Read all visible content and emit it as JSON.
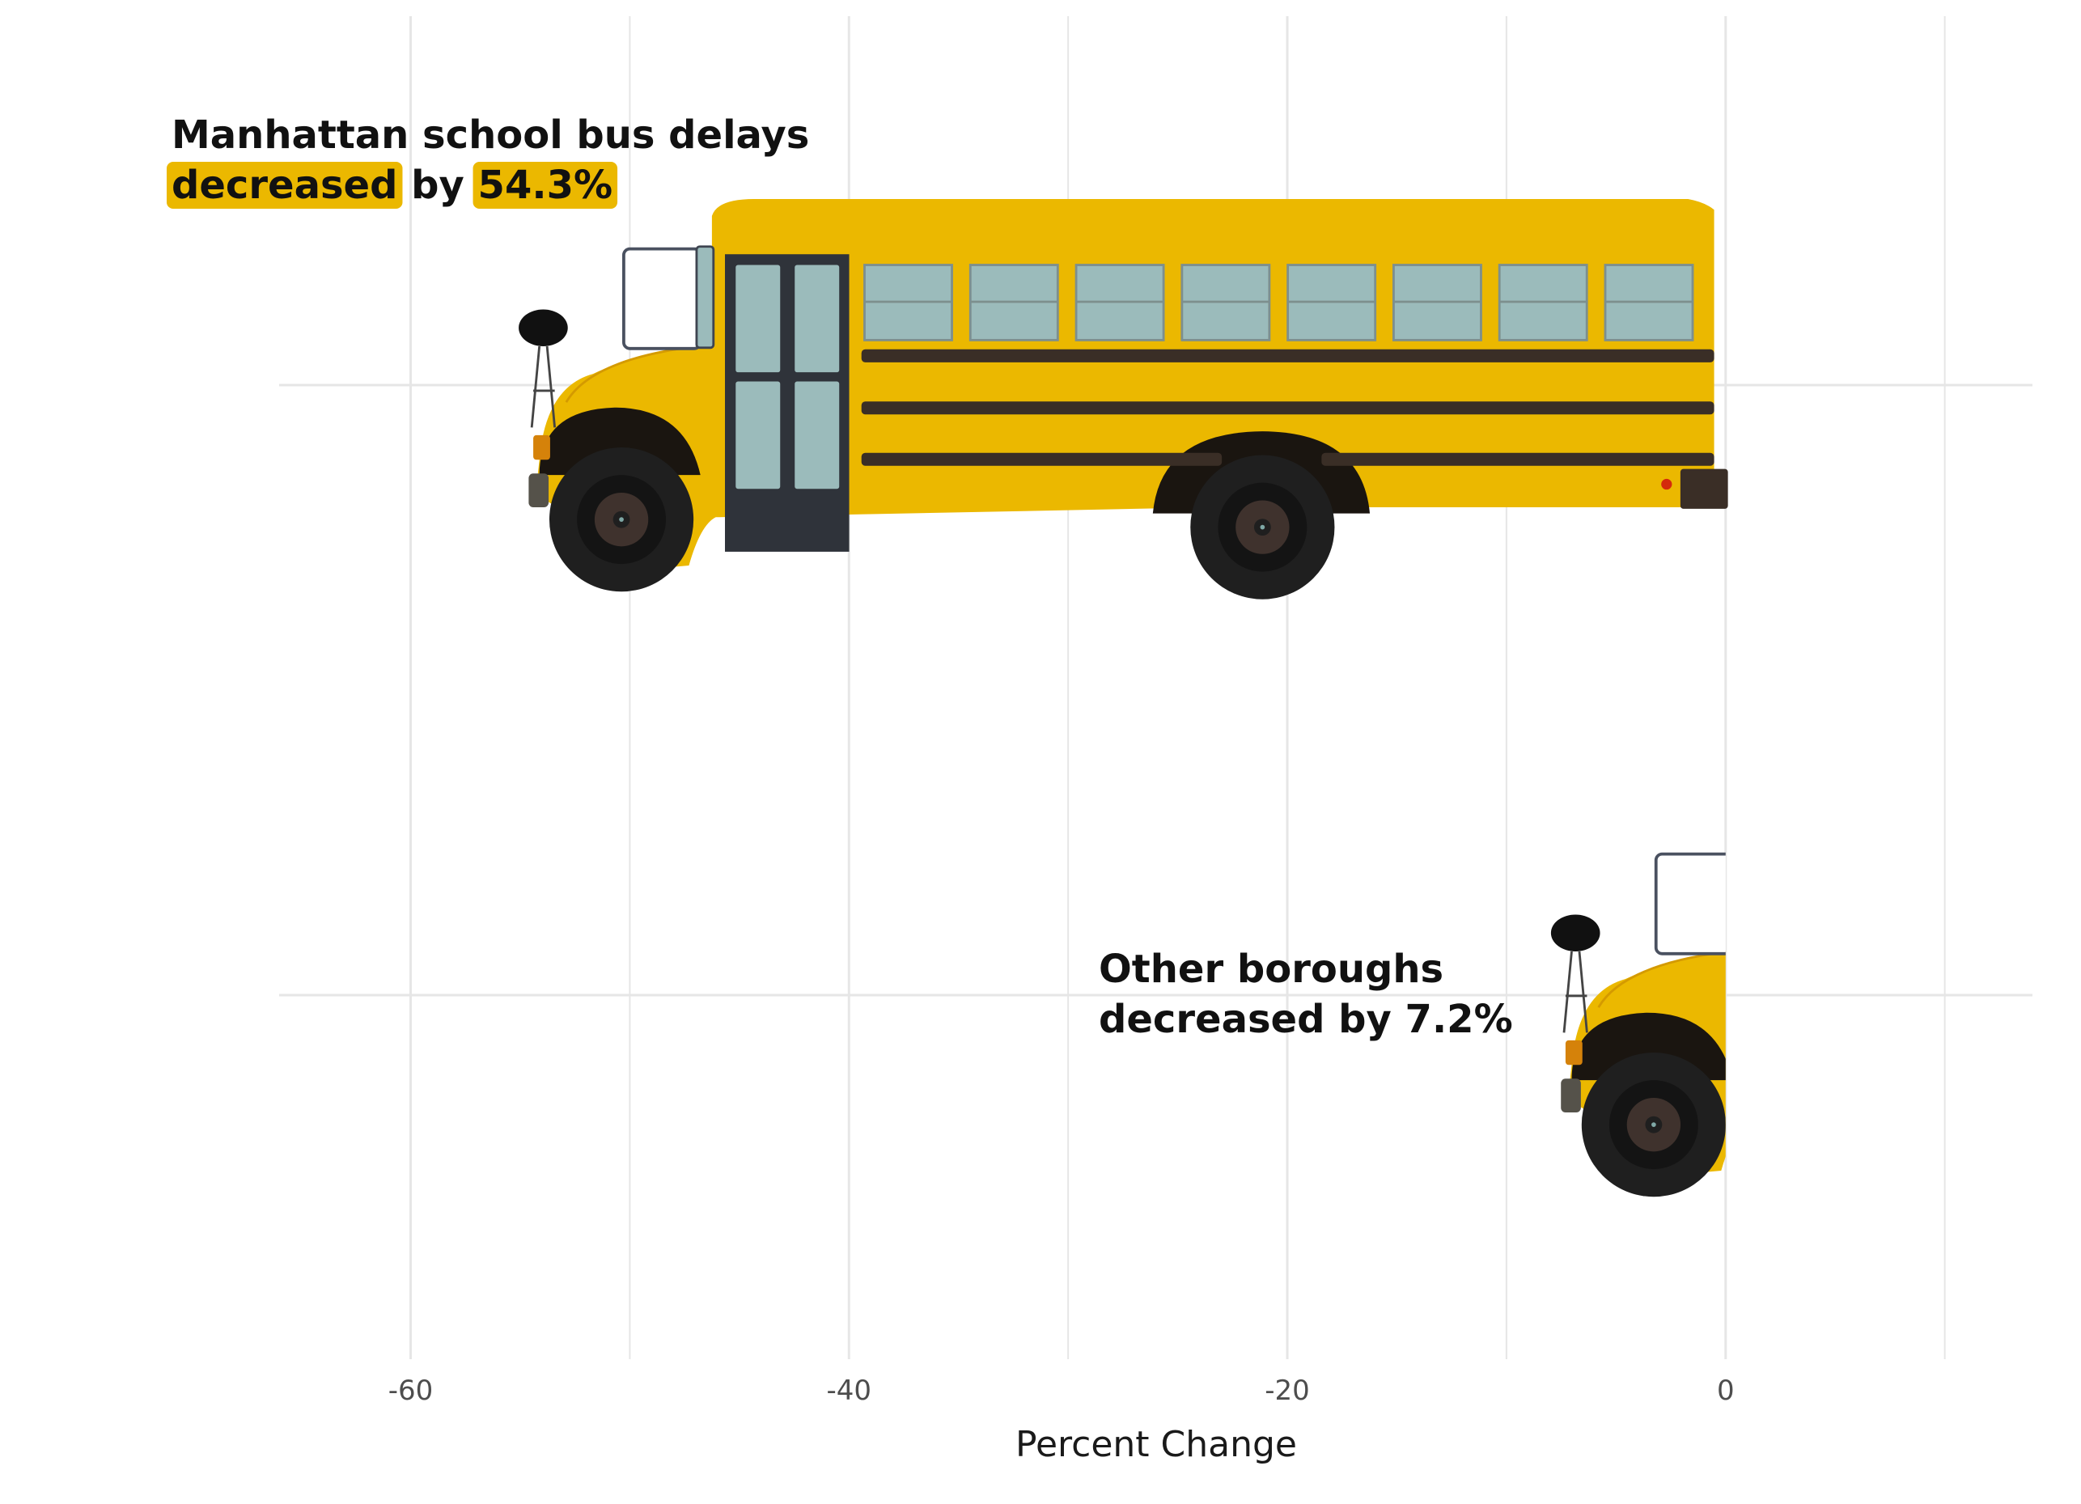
{
  "chart_data": {
    "type": "bar",
    "orientation": "horizontal",
    "categories": [
      "Manhattan",
      "Other boroughs"
    ],
    "values": [
      -54.3,
      -7.2
    ],
    "xlabel": "Percent Change",
    "ylabel": "",
    "xlim": [
      -66,
      14
    ],
    "x_ticks": [
      -60,
      -40,
      -20,
      0
    ],
    "x_tick_labels": [
      "-60",
      "-40",
      "-20",
      "0"
    ],
    "grid": true,
    "bar_style": "school-bus-illustration",
    "annotations": [
      {
        "category": "Manhattan",
        "line1": "Manhattan school bus delays",
        "line2_parts": [
          "decreased",
          " by ",
          "54.3%"
        ],
        "highlighted_parts": [
          0,
          2
        ]
      },
      {
        "category": "Other boroughs",
        "line1": "Other boroughs",
        "line2": "decreased by 7.2%"
      }
    ]
  },
  "colors": {
    "bus_body": "#EBB800",
    "highlight": "#EBB800",
    "window": "#9BBBBB",
    "stripe": "#3A2E26",
    "tire": "#1F1F1F",
    "grid": "#E6E6E6"
  }
}
